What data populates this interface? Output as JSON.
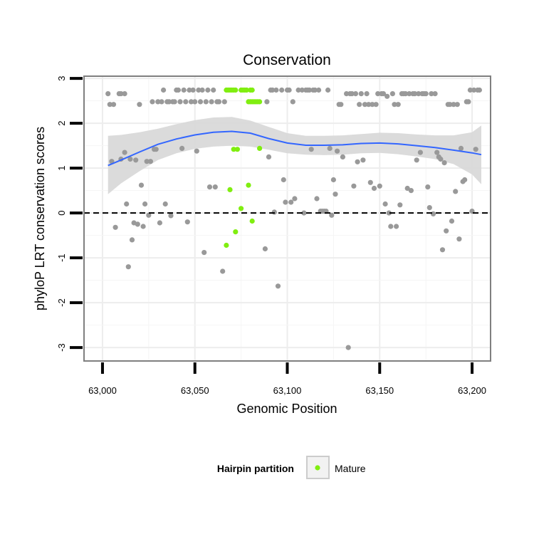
{
  "chart_data": {
    "type": "scatter",
    "title": "Conservation",
    "xlabel": "Genomic Position",
    "ylabel": "phyloP LRT conservation scores",
    "xlim": [
      62990,
      63210
    ],
    "ylim": [
      -3.3,
      3.05
    ],
    "x_ticks": [
      63000,
      63050,
      63100,
      63150,
      63200
    ],
    "x_tick_labels": [
      "63,000",
      "63,050",
      "63,100",
      "63,150",
      "63,200"
    ],
    "y_ticks": [
      -3,
      -2,
      -1,
      0,
      1,
      2,
      3
    ],
    "y_tick_labels": [
      "-3",
      "-2",
      "-1",
      "0",
      "1",
      "2",
      "3"
    ],
    "grid": true,
    "reference_line": {
      "y": 0,
      "style": "dashed"
    },
    "legend": {
      "title": "Hairpin partition",
      "placement": "bottom",
      "entries": [
        {
          "label": "Mature",
          "color": "#80ee10"
        }
      ]
    },
    "colors": {
      "other": "#999999",
      "mature": "#80ee10",
      "smooth": "#3366ff",
      "band": "#d9d9d9"
    },
    "series": [
      {
        "name": "",
        "color": "#999999",
        "points": [
          [
            63003,
            2.66
          ],
          [
            63004,
            2.42
          ],
          [
            63006,
            2.42
          ],
          [
            63009,
            2.66
          ],
          [
            63010,
            2.66
          ],
          [
            63012,
            2.66
          ],
          [
            63005,
            1.15
          ],
          [
            63007,
            -0.32
          ],
          [
            63010,
            1.2
          ],
          [
            63012,
            1.35
          ],
          [
            63013,
            0.2
          ],
          [
            63014,
            -1.2
          ],
          [
            63015,
            1.2
          ],
          [
            63016,
            -0.6
          ],
          [
            63017,
            -0.22
          ],
          [
            63018,
            1.18
          ],
          [
            63019,
            -0.25
          ],
          [
            63020,
            2.42
          ],
          [
            63021,
            0.62
          ],
          [
            63022,
            -0.3
          ],
          [
            63023,
            0.2
          ],
          [
            63024,
            1.15
          ],
          [
            63025,
            -0.05
          ],
          [
            63026,
            1.15
          ],
          [
            63027,
            2.48
          ],
          [
            63028,
            1.42
          ],
          [
            63029,
            1.42
          ],
          [
            63030,
            2.48
          ],
          [
            63031,
            -0.22
          ],
          [
            63032,
            2.48
          ],
          [
            63033,
            2.74
          ],
          [
            63034,
            0.2
          ],
          [
            63035,
            2.48
          ],
          [
            63036,
            2.48
          ],
          [
            63037,
            -0.06
          ],
          [
            63038,
            2.48
          ],
          [
            63039,
            2.48
          ],
          [
            63040,
            2.74
          ],
          [
            63041,
            2.74
          ],
          [
            63042,
            2.48
          ],
          [
            63043,
            1.44
          ],
          [
            63044,
            2.74
          ],
          [
            63045,
            2.48
          ],
          [
            63046,
            -0.2
          ],
          [
            63047,
            2.74
          ],
          [
            63048,
            2.48
          ],
          [
            63049,
            2.74
          ],
          [
            63050,
            2.48
          ],
          [
            63051,
            1.38
          ],
          [
            63052,
            2.74
          ],
          [
            63053,
            2.48
          ],
          [
            63054,
            2.74
          ],
          [
            63055,
            -0.88
          ],
          [
            63056,
            2.48
          ],
          [
            63057,
            2.74
          ],
          [
            63058,
            0.58
          ],
          [
            63059,
            2.48
          ],
          [
            63060,
            2.74
          ],
          [
            63061,
            0.58
          ],
          [
            63062,
            2.48
          ],
          [
            63063,
            2.48
          ],
          [
            63065,
            -1.3
          ],
          [
            63066,
            2.48
          ],
          [
            63088,
            -0.8
          ],
          [
            63089,
            2.48
          ],
          [
            63090,
            1.25
          ],
          [
            63091,
            2.74
          ],
          [
            63092,
            2.74
          ],
          [
            63093,
            0.02
          ],
          [
            63094,
            2.74
          ],
          [
            63095,
            -1.63
          ],
          [
            63097,
            2.74
          ],
          [
            63098,
            0.74
          ],
          [
            63099,
            0.24
          ],
          [
            63100,
            2.74
          ],
          [
            63101,
            2.74
          ],
          [
            63102,
            0.24
          ],
          [
            63103,
            2.48
          ],
          [
            63104,
            0.32
          ],
          [
            63106,
            2.74
          ],
          [
            63108,
            2.74
          ],
          [
            63109,
            0.0
          ],
          [
            63110,
            2.74
          ],
          [
            63111,
            2.74
          ],
          [
            63112,
            2.74
          ],
          [
            63113,
            1.42
          ],
          [
            63114,
            2.74
          ],
          [
            63115,
            2.74
          ],
          [
            63116,
            0.32
          ],
          [
            63117,
            2.74
          ],
          [
            63118,
            0.04
          ],
          [
            63119,
            0.04
          ],
          [
            63120,
            0.04
          ],
          [
            63121,
            0.04
          ],
          [
            63122,
            2.74
          ],
          [
            63123,
            1.44
          ],
          [
            63124,
            -0.05
          ],
          [
            63125,
            0.74
          ],
          [
            63126,
            0.42
          ],
          [
            63127,
            1.38
          ],
          [
            63128,
            2.42
          ],
          [
            63129,
            2.42
          ],
          [
            63130,
            1.25
          ],
          [
            63132,
            2.66
          ],
          [
            63133,
            -3.0
          ],
          [
            63134,
            2.66
          ],
          [
            63135,
            2.66
          ],
          [
            63136,
            0.6
          ],
          [
            63137,
            2.66
          ],
          [
            63138,
            1.14
          ],
          [
            63139,
            2.42
          ],
          [
            63140,
            2.66
          ],
          [
            63141,
            1.18
          ],
          [
            63142,
            2.42
          ],
          [
            63143,
            2.66
          ],
          [
            63144,
            2.42
          ],
          [
            63145,
            0.68
          ],
          [
            63146,
            2.42
          ],
          [
            63147,
            0.55
          ],
          [
            63148,
            2.42
          ],
          [
            63149,
            2.66
          ],
          [
            63150,
            0.6
          ],
          [
            63151,
            2.66
          ],
          [
            63152,
            2.66
          ],
          [
            63153,
            0.2
          ],
          [
            63154,
            2.6
          ],
          [
            63155,
            0.0
          ],
          [
            63156,
            -0.3
          ],
          [
            63157,
            2.66
          ],
          [
            63158,
            2.42
          ],
          [
            63159,
            -0.3
          ],
          [
            63160,
            2.42
          ],
          [
            63161,
            0.18
          ],
          [
            63162,
            2.66
          ],
          [
            63163,
            2.66
          ],
          [
            63164,
            2.66
          ],
          [
            63165,
            0.55
          ],
          [
            63166,
            2.66
          ],
          [
            63167,
            0.5
          ],
          [
            63168,
            2.66
          ],
          [
            63169,
            2.66
          ],
          [
            63170,
            1.18
          ],
          [
            63171,
            2.66
          ],
          [
            63172,
            1.35
          ],
          [
            63173,
            2.66
          ],
          [
            63174,
            2.66
          ],
          [
            63175,
            2.66
          ],
          [
            63176,
            0.58
          ],
          [
            63177,
            0.12
          ],
          [
            63178,
            2.66
          ],
          [
            63179,
            -0.02
          ],
          [
            63180,
            2.66
          ],
          [
            63181,
            1.35
          ],
          [
            63182,
            1.25
          ],
          [
            63183,
            1.2
          ],
          [
            63184,
            -0.82
          ],
          [
            63185,
            1.12
          ],
          [
            63186,
            -0.4
          ],
          [
            63187,
            2.42
          ],
          [
            63188,
            2.42
          ],
          [
            63189,
            -0.18
          ],
          [
            63190,
            2.42
          ],
          [
            63191,
            0.48
          ],
          [
            63192,
            2.42
          ],
          [
            63193,
            -0.58
          ],
          [
            63194,
            1.44
          ],
          [
            63195,
            0.7
          ],
          [
            63196,
            0.74
          ],
          [
            63197,
            2.48
          ],
          [
            63198,
            2.48
          ],
          [
            63199,
            2.74
          ],
          [
            63200,
            0.04
          ],
          [
            63201,
            2.74
          ],
          [
            63202,
            1.42
          ],
          [
            63203,
            2.74
          ],
          [
            63204,
            2.74
          ]
        ]
      },
      {
        "name": "Mature",
        "color": "#80ee10",
        "points": [
          [
            63067,
            2.74
          ],
          [
            63068,
            2.74
          ],
          [
            63069,
            2.74
          ],
          [
            63070,
            2.74
          ],
          [
            63071,
            2.74
          ],
          [
            63072,
            2.74
          ],
          [
            63075,
            2.74
          ],
          [
            63076,
            2.74
          ],
          [
            63077,
            2.74
          ],
          [
            63078,
            2.74
          ],
          [
            63080,
            2.74
          ],
          [
            63081,
            2.74
          ],
          [
            63079,
            2.48
          ],
          [
            63080,
            2.48
          ],
          [
            63081,
            2.48
          ],
          [
            63082,
            2.48
          ],
          [
            63083,
            2.48
          ],
          [
            63084,
            2.48
          ],
          [
            63085,
            2.48
          ],
          [
            63071,
            1.42
          ],
          [
            63073,
            1.42
          ],
          [
            63085,
            1.44
          ],
          [
            63069,
            0.52
          ],
          [
            63079,
            0.62
          ],
          [
            63075,
            0.1
          ],
          [
            63081,
            -0.18
          ],
          [
            63072,
            -0.42
          ],
          [
            63067,
            -0.72
          ]
        ]
      }
    ],
    "smooth": {
      "x": [
        63003,
        63010,
        63020,
        63030,
        63040,
        63050,
        63060,
        63070,
        63080,
        63090,
        63100,
        63110,
        63120,
        63130,
        63140,
        63150,
        63160,
        63170,
        63180,
        63190,
        63200,
        63205
      ],
      "y": [
        1.06,
        1.18,
        1.36,
        1.53,
        1.65,
        1.74,
        1.8,
        1.82,
        1.78,
        1.66,
        1.56,
        1.51,
        1.51,
        1.52,
        1.55,
        1.56,
        1.54,
        1.5,
        1.46,
        1.4,
        1.34,
        1.3
      ],
      "upper": [
        1.72,
        1.74,
        1.8,
        1.88,
        1.98,
        2.07,
        2.13,
        2.14,
        2.06,
        1.92,
        1.78,
        1.72,
        1.72,
        1.73,
        1.76,
        1.79,
        1.78,
        1.75,
        1.73,
        1.73,
        1.8,
        1.95
      ],
      "lower": [
        0.42,
        0.66,
        0.93,
        1.18,
        1.33,
        1.43,
        1.48,
        1.5,
        1.48,
        1.41,
        1.33,
        1.3,
        1.29,
        1.3,
        1.33,
        1.34,
        1.31,
        1.26,
        1.2,
        1.09,
        0.86,
        0.64
      ]
    }
  }
}
